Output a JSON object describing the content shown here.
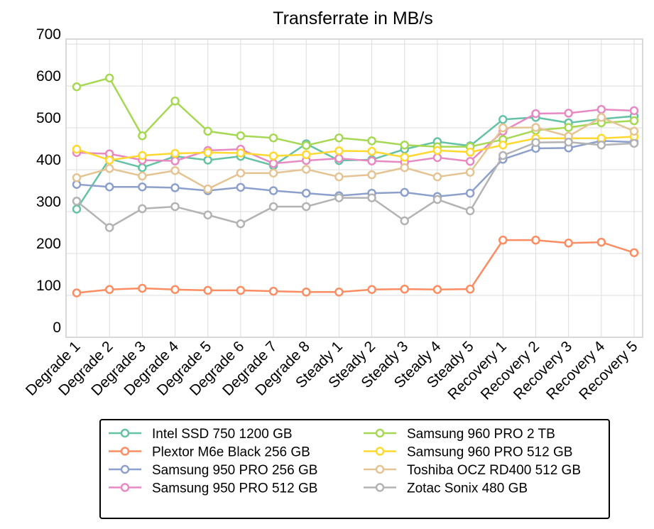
{
  "chart_data": {
    "type": "line",
    "title": "Transferrate in MB/s",
    "xlabel": "",
    "ylabel": "",
    "ylim": [
      0,
      712
    ],
    "yticks": [
      0,
      100,
      200,
      300,
      400,
      500,
      600,
      700
    ],
    "grid": true,
    "legend_position": "bottom",
    "categories": [
      "Degrade 1",
      "Degrade 2",
      "Degrade 3",
      "Degrade 4",
      "Degrade 5",
      "Degrade 6",
      "Degrade 7",
      "Degrade 8",
      "Steady 1",
      "Steady 2",
      "Steady 3",
      "Steady 4",
      "Steady 5",
      "Recovery 1",
      "Recovery 2",
      "Recovery 3",
      "Recovery 4",
      "Recovery 5"
    ],
    "series": [
      {
        "name": "Intel SSD 750 1200 GB",
        "color": "#66c2a5",
        "values": [
          306,
          426,
          405,
          432,
          423,
          432,
          410,
          462,
          422,
          424,
          449,
          467,
          457,
          520,
          525,
          512,
          521,
          528
        ]
      },
      {
        "name": "Plextor M6e Black 256 GB",
        "color": "#fc8d62",
        "values": [
          106,
          114,
          117,
          114,
          112,
          112,
          110,
          108,
          108,
          114,
          115,
          114,
          115,
          232,
          232,
          225,
          227,
          202
        ]
      },
      {
        "name": "Samsung 950 PRO 256 GB",
        "color": "#8da0cb",
        "values": [
          365,
          359,
          359,
          357,
          350,
          358,
          350,
          344,
          338,
          344,
          346,
          336,
          344,
          425,
          451,
          452,
          469,
          466
        ]
      },
      {
        "name": "Samsung 950 PRO 512 GB",
        "color": "#e78ac3",
        "values": [
          441,
          438,
          423,
          421,
          446,
          449,
          415,
          422,
          427,
          421,
          418,
          429,
          420,
          492,
          534,
          535,
          544,
          541
        ]
      },
      {
        "name": "Samsung 960 PRO 2 TB",
        "color": "#a6d854",
        "values": [
          598,
          619,
          481,
          564,
          492,
          481,
          476,
          458,
          476,
          469,
          459,
          455,
          455,
          472,
          494,
          501,
          512,
          517
        ]
      },
      {
        "name": "Samsung 960 PRO 512 GB",
        "color": "#ffd92f",
        "values": [
          449,
          423,
          434,
          439,
          441,
          440,
          433,
          436,
          445,
          444,
          430,
          446,
          442,
          459,
          475,
          475,
          475,
          479
        ]
      },
      {
        "name": "Toshiba OCZ RD400 512 GB",
        "color": "#e5c494",
        "values": [
          381,
          403,
          385,
          398,
          354,
          392,
          392,
          401,
          383,
          388,
          405,
          383,
          394,
          500,
          501,
          480,
          525,
          492
        ]
      },
      {
        "name": "Zotac Sonix 480 GB",
        "color": "#b3b3b3",
        "values": [
          325,
          262,
          307,
          312,
          292,
          271,
          312,
          312,
          333,
          333,
          278,
          329,
          302,
          434,
          465,
          466,
          459,
          463
        ]
      }
    ]
  }
}
